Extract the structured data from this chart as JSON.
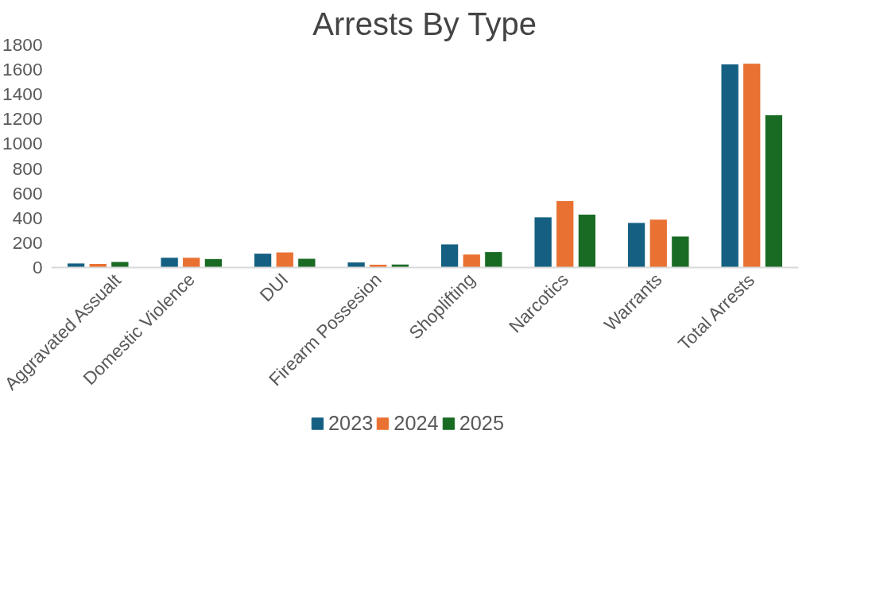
{
  "chart_data": {
    "type": "bar",
    "title": "Arrests By Type",
    "categories": [
      "Aggravated Assualt",
      "Domestic Violence",
      "DUI",
      "Firearm Possesion",
      "Shoplifting",
      "Narcotics",
      "Warrants",
      "Total Arrests"
    ],
    "series": [
      {
        "name": "2023",
        "color": "#156082",
        "values": [
          36,
          82,
          115,
          44,
          190,
          409,
          364,
          1646
        ]
      },
      {
        "name": "2024",
        "color": "#e97132",
        "values": [
          32,
          82,
          125,
          26,
          108,
          541,
          390,
          1651
        ]
      },
      {
        "name": "2025",
        "color": "#196b24",
        "values": [
          48,
          72,
          74,
          28,
          128,
          431,
          254,
          1235
        ]
      }
    ],
    "ylim": [
      0,
      1800
    ],
    "yticks": [
      0,
      200,
      400,
      600,
      800,
      1000,
      1200,
      1400,
      1600,
      1800
    ],
    "grid": false,
    "legend": "bottom"
  }
}
